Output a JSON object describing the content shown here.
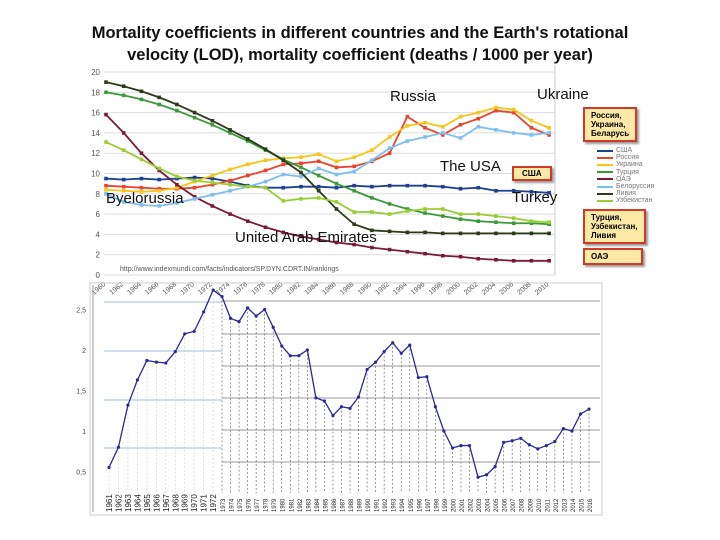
{
  "title": {
    "line1": "Mortality coefficients in different countries and the Earth's rotational",
    "line2": "velocity (LOD), mortality coefficient (deaths / 1000 per year)"
  },
  "annotations": {
    "russia": "Russia",
    "ukraine": "Ukraine",
    "usa": "The USA",
    "byelorussia": "Byelorussia",
    "turkey": "Turkey",
    "uae": "United Arab Emirates"
  },
  "callouts": {
    "rub": "Россия,\nУкраина,\nБеларусь",
    "usa": "США",
    "tul": "Турция,\nУзбекистан,\nЛивия",
    "uae": "ОАЭ"
  },
  "chart_data": [
    {
      "type": "line",
      "title": "",
      "xlabel": "",
      "ylabel": "",
      "ylim": [
        0,
        20
      ],
      "yticks": [
        0,
        2,
        4,
        6,
        8,
        10,
        12,
        14,
        16,
        18,
        20
      ],
      "xlim": [
        1960,
        2011
      ],
      "source": "http://www.indexmundi.com/facts/indicators/SP.DYN.CDRT.IN/rankings",
      "legend_position": "right",
      "grid": true,
      "x": [
        1960,
        1962,
        1964,
        1966,
        1968,
        1970,
        1972,
        1974,
        1976,
        1978,
        1980,
        1982,
        1984,
        1986,
        1988,
        1990,
        1992,
        1994,
        1996,
        1998,
        2000,
        2002,
        2004,
        2006,
        2008,
        2010
      ],
      "xtick_labels": [
        "1960",
        "1962",
        "1964",
        "1966",
        "1968",
        "1970",
        "1972",
        "1974",
        "1976",
        "1978",
        "1980",
        "1982",
        "1984",
        "1986",
        "1988",
        "1990",
        "1992",
        "1994",
        "1996",
        "1998",
        "2000",
        "2002",
        "2004",
        "2006",
        "2008",
        "2010"
      ],
      "series": [
        {
          "name": "США",
          "color": "#1f3f8f",
          "values": [
            9.5,
            9.4,
            9.5,
            9.4,
            9.5,
            9.6,
            9.5,
            9.2,
            8.8,
            8.6,
            8.6,
            8.7,
            8.7,
            8.6,
            8.8,
            8.7,
            8.8,
            8.8,
            8.8,
            8.7,
            8.5,
            8.6,
            8.3,
            8.3,
            8.2,
            8.1
          ]
        },
        {
          "name": "Россия",
          "color": "#e8442a",
          "values": [
            8.8,
            8.7,
            8.6,
            8.5,
            8.5,
            8.6,
            8.9,
            9.3,
            9.8,
            10.3,
            10.9,
            11.0,
            11.2,
            10.6,
            10.7,
            11.2,
            12.0,
            15.6,
            14.5,
            13.8,
            14.8,
            15.4,
            16.2,
            16.0,
            14.5,
            13.8
          ]
        },
        {
          "name": "Украина",
          "color": "#f5c518",
          "values": [
            8.4,
            8.3,
            8.2,
            8.3,
            8.6,
            9.2,
            9.8,
            10.4,
            10.9,
            11.3,
            11.5,
            11.6,
            11.9,
            11.2,
            11.6,
            12.3,
            13.6,
            14.7,
            15.0,
            14.6,
            15.6,
            16.0,
            16.5,
            16.3,
            15.2,
            14.5
          ]
        },
        {
          "name": "Турция",
          "color": "#3a9a3a",
          "values": [
            18.0,
            17.7,
            17.3,
            16.8,
            16.2,
            15.5,
            14.8,
            14.0,
            13.2,
            12.3,
            11.4,
            10.6,
            9.8,
            9.0,
            8.3,
            7.6,
            7.0,
            6.5,
            6.1,
            5.8,
            5.5,
            5.3,
            5.2,
            5.1,
            5.1,
            5.0
          ]
        },
        {
          "name": "ОАЭ",
          "color": "#7a1a3a",
          "values": [
            15.8,
            14.0,
            12.0,
            10.3,
            8.9,
            7.7,
            6.8,
            6.0,
            5.3,
            4.7,
            4.2,
            3.8,
            3.5,
            3.2,
            3.0,
            2.7,
            2.5,
            2.3,
            2.1,
            1.9,
            1.8,
            1.6,
            1.5,
            1.4,
            1.4,
            1.4
          ]
        },
        {
          "name": "Белоруссия",
          "color": "#7fbfef",
          "values": [
            8.0,
            7.2,
            6.9,
            6.8,
            7.1,
            7.5,
            7.9,
            8.3,
            8.7,
            9.2,
            9.9,
            9.7,
            10.5,
            9.9,
            10.2,
            11.3,
            12.5,
            13.2,
            13.6,
            14.0,
            13.5,
            14.6,
            14.3,
            14.0,
            13.8,
            14.0
          ]
        },
        {
          "name": "Ливия",
          "color": "#2a3a1a",
          "values": [
            19.0,
            18.6,
            18.1,
            17.5,
            16.8,
            16.0,
            15.2,
            14.3,
            13.4,
            12.4,
            11.3,
            10.1,
            8.3,
            6.5,
            5.0,
            4.4,
            4.3,
            4.2,
            4.2,
            4.1,
            4.1,
            4.1,
            4.1,
            4.1,
            4.1,
            4.1
          ]
        },
        {
          "name": "Узбекистан",
          "color": "#9acd32",
          "values": [
            13.1,
            12.3,
            11.4,
            10.5,
            9.7,
            9.3,
            9.1,
            8.9,
            8.7,
            8.6,
            7.3,
            7.5,
            7.6,
            7.2,
            6.2,
            6.2,
            6.0,
            6.3,
            6.5,
            6.5,
            6.0,
            6.0,
            5.8,
            5.6,
            5.3,
            5.2
          ]
        }
      ]
    },
    {
      "type": "line",
      "title": "",
      "xlabel": "",
      "ylabel": "",
      "ylim": [
        0,
        2.8
      ],
      "yticks": [
        "0,5",
        "1",
        "1,5",
        "2",
        "2,5"
      ],
      "grid": true,
      "color": "#2a2a9a",
      "x": [
        1961,
        1962,
        1963,
        1964,
        1965,
        1966,
        1967,
        1968,
        1969,
        1970,
        1971,
        1972,
        1973,
        1974,
        1975,
        1976,
        1977,
        1978,
        1979,
        1980,
        1981,
        1982,
        1983,
        1984,
        1985,
        1986,
        1987,
        1988,
        1989,
        1990,
        1991,
        1992,
        1993,
        1994,
        1995,
        1996,
        1997,
        1998,
        1999,
        2000,
        2001,
        2002,
        2003,
        2004,
        2005,
        2006,
        2007,
        2008,
        2009,
        2010,
        2011,
        2012,
        2013,
        2014,
        2015,
        2016
      ],
      "values": [
        0.55,
        0.8,
        1.32,
        1.63,
        1.87,
        1.85,
        1.84,
        1.98,
        2.2,
        2.23,
        2.47,
        2.74,
        2.66,
        2.39,
        2.35,
        2.52,
        2.42,
        2.5,
        2.28,
        2.05,
        1.93,
        1.93,
        2.0,
        1.41,
        1.37,
        1.19,
        1.3,
        1.28,
        1.42,
        1.76,
        1.85,
        1.98,
        2.09,
        1.96,
        2.06,
        1.66,
        1.67,
        1.3,
        1.0,
        0.79,
        0.82,
        0.82,
        0.43,
        0.46,
        0.56,
        0.86,
        0.88,
        0.91,
        0.83,
        0.78,
        0.82,
        0.87,
        1.03,
        1.0,
        1.21,
        1.27
      ]
    }
  ]
}
